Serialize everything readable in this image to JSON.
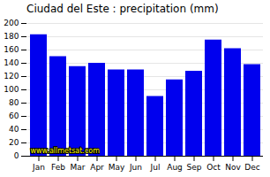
{
  "chart_data": {
    "type": "bar",
    "title": "Ciudad del Este : precipitation (mm)",
    "categories": [
      "Jan",
      "Feb",
      "Mar",
      "Apr",
      "May",
      "Jun",
      "Jul",
      "Aug",
      "Sep",
      "Oct",
      "Nov",
      "Dec"
    ],
    "values": [
      183,
      150,
      135,
      140,
      130,
      130,
      90,
      115,
      128,
      175,
      162,
      138
    ],
    "color": "#0000EE",
    "ylim": [
      0,
      200
    ],
    "yticks": [
      0,
      20,
      40,
      60,
      80,
      100,
      120,
      140,
      160,
      180,
      200
    ],
    "grid": true,
    "annotations": [
      "www.allmetsat.com"
    ]
  }
}
